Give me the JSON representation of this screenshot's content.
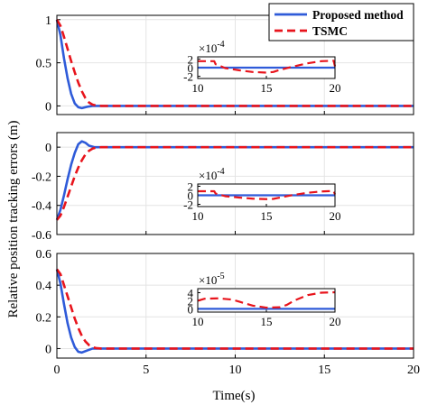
{
  "chart_data": {
    "type": "line",
    "ylabel": "Relative position tracking errors (m)",
    "xlabel": "Time(s)",
    "legend": {
      "placement": "top-right",
      "entries": [
        {
          "name": "Proposed method",
          "color": "#2f5bd9",
          "style": "solid"
        },
        {
          "name": "TSMC",
          "color": "#e8141c",
          "style": "dashed"
        }
      ]
    },
    "x_ticks": [
      "0",
      "5",
      "10",
      "15",
      "20"
    ],
    "grid": true,
    "panels": [
      {
        "xlim": [
          0,
          20
        ],
        "ylim": [
          -0.1,
          1.05
        ],
        "y_ticks": [
          {
            "v": 1,
            "t": "1"
          },
          {
            "v": 0.5,
            "t": "0.5"
          },
          {
            "v": 0,
            "t": "0"
          }
        ],
        "series": [
          {
            "name": "Proposed method",
            "x": [
              0,
              0.2,
              0.4,
              0.6,
              0.8,
              1.0,
              1.2,
              1.4,
              1.7,
              2.0,
              2.5,
              3,
              20
            ],
            "y": [
              1,
              0.82,
              0.55,
              0.32,
              0.14,
              0.03,
              -0.015,
              -0.025,
              -0.01,
              0,
              0,
              0,
              0
            ]
          },
          {
            "name": "TSMC",
            "x": [
              0,
              0.2,
              0.4,
              0.6,
              0.8,
              1.0,
              1.2,
              1.4,
              1.6,
              1.8,
              2.0,
              2.2,
              2.5,
              3,
              20
            ],
            "y": [
              1,
              0.93,
              0.8,
              0.66,
              0.52,
              0.39,
              0.27,
              0.17,
              0.09,
              0.04,
              0.015,
              0.005,
              0,
              0,
              0
            ]
          }
        ],
        "inset": {
          "exponent": "-4",
          "xlim": [
            10,
            20
          ],
          "ylim": [
            -2.5,
            2.5
          ],
          "x_ticks": [
            "10",
            "15",
            "20"
          ],
          "y_ticks": [
            {
              "v": 2,
              "t": "2"
            },
            {
              "v": 0,
              "t": "0"
            },
            {
              "v": -2,
              "t": "-2"
            }
          ],
          "series": [
            {
              "name": "Proposed method",
              "x": [
                10,
                20
              ],
              "y": [
                0,
                0
              ]
            },
            {
              "name": "TSMC",
              "x": [
                10,
                11.2,
                11.3,
                12,
                13,
                14,
                15,
                15.5,
                16,
                17,
                18,
                19,
                19.9,
                20
              ],
              "y": [
                1.5,
                1.5,
                0.8,
                -0.1,
                -0.6,
                -1.0,
                -1.15,
                -1.0,
                -0.5,
                0.3,
                1.0,
                1.5,
                1.6,
                0.3
              ]
            }
          ]
        }
      },
      {
        "xlim": [
          0,
          20
        ],
        "ylim": [
          -0.6,
          0.1
        ],
        "y_ticks": [
          {
            "v": 0,
            "t": "0"
          },
          {
            "v": -0.2,
            "t": "-0.2"
          },
          {
            "v": -0.4,
            "t": "-0.4"
          },
          {
            "v": -0.6,
            "t": "-0.6"
          }
        ],
        "series": [
          {
            "name": "Proposed method",
            "x": [
              0,
              0.2,
              0.4,
              0.6,
              0.8,
              1.0,
              1.2,
              1.4,
              1.6,
              1.8,
              2.1,
              2.5,
              3,
              20
            ],
            "y": [
              -0.5,
              -0.43,
              -0.33,
              -0.22,
              -0.12,
              -0.04,
              0.02,
              0.04,
              0.03,
              0.01,
              0,
              0,
              0,
              0
            ]
          },
          {
            "name": "TSMC",
            "x": [
              0,
              0.2,
              0.4,
              0.6,
              0.8,
              1.0,
              1.2,
              1.4,
              1.6,
              1.8,
              2.0,
              2.2,
              2.5,
              3,
              20
            ],
            "y": [
              -0.5,
              -0.47,
              -0.41,
              -0.34,
              -0.27,
              -0.2,
              -0.14,
              -0.09,
              -0.05,
              -0.025,
              -0.01,
              -0.003,
              0,
              0,
              0
            ]
          }
        ],
        "inset": {
          "exponent": "-4",
          "xlim": [
            10,
            20
          ],
          "ylim": [
            -2.5,
            2.5
          ],
          "x_ticks": [
            "10",
            "15",
            "20"
          ],
          "y_ticks": [
            {
              "v": 2,
              "t": "2"
            },
            {
              "v": 0,
              "t": "0"
            },
            {
              "v": -2,
              "t": "-2"
            }
          ],
          "series": [
            {
              "name": "Proposed method",
              "x": [
                10,
                20
              ],
              "y": [
                0,
                0
              ]
            },
            {
              "name": "TSMC",
              "x": [
                10,
                11.2,
                11.3,
                12,
                13,
                14,
                15,
                15.5,
                16,
                17,
                18,
                19,
                19.9,
                20
              ],
              "y": [
                0.9,
                0.9,
                0.4,
                -0.2,
                -0.5,
                -0.75,
                -0.85,
                -0.8,
                -0.5,
                0.1,
                0.55,
                0.85,
                0.95,
                0.2
              ]
            }
          ]
        }
      },
      {
        "xlim": [
          0,
          20
        ],
        "ylim": [
          -0.06,
          0.6
        ],
        "y_ticks": [
          {
            "v": 0.6,
            "t": "0.6"
          },
          {
            "v": 0.4,
            "t": "0.4"
          },
          {
            "v": 0.2,
            "t": "0.2"
          },
          {
            "v": 0,
            "t": "0"
          }
        ],
        "series": [
          {
            "name": "Proposed method",
            "x": [
              0,
              0.2,
              0.4,
              0.6,
              0.8,
              1.0,
              1.2,
              1.4,
              1.7,
              2.0,
              2.5,
              3,
              20
            ],
            "y": [
              0.5,
              0.41,
              0.28,
              0.16,
              0.07,
              0.01,
              -0.02,
              -0.025,
              -0.012,
              0,
              0,
              0,
              0
            ]
          },
          {
            "name": "TSMC",
            "x": [
              0,
              0.2,
              0.4,
              0.6,
              0.8,
              1.0,
              1.2,
              1.4,
              1.6,
              1.8,
              2.0,
              2.2,
              2.5,
              3,
              20
            ],
            "y": [
              0.5,
              0.47,
              0.4,
              0.33,
              0.26,
              0.19,
              0.13,
              0.08,
              0.045,
              0.022,
              0.009,
              0.003,
              0,
              0,
              0
            ]
          }
        ],
        "inset": {
          "exponent": "-5",
          "xlim": [
            10,
            20
          ],
          "ylim": [
            -0.8,
            5
          ],
          "x_ticks": [
            "10",
            "15",
            "20"
          ],
          "y_ticks": [
            {
              "v": 4,
              "t": "4"
            },
            {
              "v": 2,
              "t": "2"
            },
            {
              "v": 0,
              "t": "0"
            }
          ],
          "series": [
            {
              "name": "Proposed method",
              "x": [
                10,
                20
              ],
              "y": [
                0,
                0
              ]
            },
            {
              "name": "TSMC",
              "x": [
                10,
                10.5,
                11.5,
                12.5,
                13,
                14,
                15,
                16,
                16.5,
                17,
                18,
                19,
                20
              ],
              "y": [
                2.0,
                2.5,
                2.6,
                2.3,
                1.8,
                0.8,
                0.3,
                0.4,
                1.0,
                2.0,
                3.4,
                4.0,
                4.1
              ]
            }
          ]
        }
      }
    ]
  }
}
